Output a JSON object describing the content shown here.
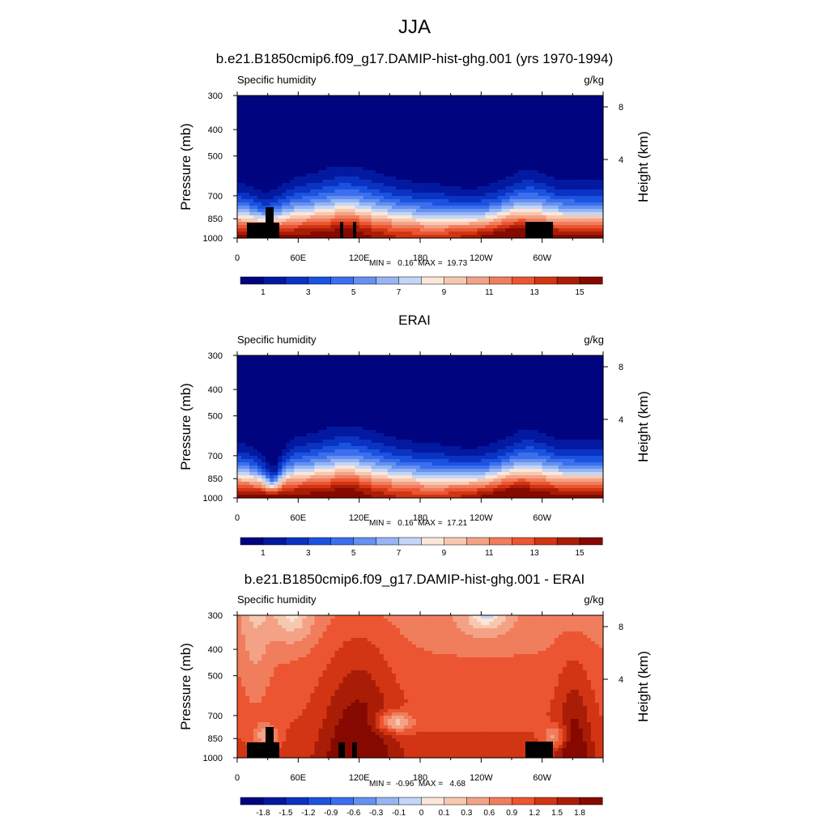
{
  "page": {
    "title": "JJA"
  },
  "panels": [
    {
      "title": "b.e21.B1850cmip6.f09_g17.DAMIP-hist-ghg.001 (yrs 1970-1994)",
      "variable": "Specific humidity",
      "units": "g/kg",
      "stats": "MIN =   0.16  MAX =  19.73"
    },
    {
      "title": "ERAI",
      "variable": "Specific humidity",
      "units": "g/kg",
      "stats": "MIN =   0.16  MAX =  17.21"
    },
    {
      "title": "b.e21.B1850cmip6.f09_g17.DAMIP-hist-ghg.001 - ERAI",
      "variable": "Specific humidity",
      "units": "g/kg",
      "stats": "MIN =  -0.96  MAX =   4.68"
    }
  ],
  "chart_data": [
    {
      "type": "heatmap",
      "title": "b.e21.B1850cmip6.f09_g17.DAMIP-hist-ghg.001 (yrs 1970-1994)",
      "subtitle_left": "Specific humidity",
      "subtitle_right": "g/kg",
      "xlabel": "",
      "ylabel": "Pressure (mb)",
      "y2label": "Height (km)",
      "xticks": [
        "0",
        "60E",
        "120E",
        "180",
        "120W",
        "60W"
      ],
      "yticks": [
        "300",
        "400",
        "500",
        "700",
        "850",
        "1000"
      ],
      "y2ticks": [
        "8",
        "4"
      ],
      "colorbar_labels": [
        "1",
        "3",
        "5",
        "7",
        "9",
        "11",
        "13",
        "15"
      ],
      "colorbar_colors": [
        "#00047f",
        "#0319a0",
        "#0a33c2",
        "#1b52df",
        "#3b6fee",
        "#6591f0",
        "#97b5f3",
        "#c3d6f7",
        "#fbe6d8",
        "#f7c8b0",
        "#f4a286",
        "#f07d5c",
        "#ec5532",
        "#d23513",
        "#a91d06",
        "#860900"
      ],
      "x_range": [
        0,
        360
      ],
      "y_range": [
        1000,
        300
      ],
      "min": 0.16,
      "max": 19.73
    },
    {
      "type": "heatmap",
      "title": "ERAI",
      "subtitle_left": "Specific humidity",
      "subtitle_right": "g/kg",
      "xlabel": "",
      "ylabel": "Pressure (mb)",
      "y2label": "Height (km)",
      "xticks": [
        "0",
        "60E",
        "120E",
        "180",
        "120W",
        "60W"
      ],
      "yticks": [
        "300",
        "400",
        "500",
        "700",
        "850",
        "1000"
      ],
      "y2ticks": [
        "8",
        "4"
      ],
      "colorbar_labels": [
        "1",
        "3",
        "5",
        "7",
        "9",
        "11",
        "13",
        "15"
      ],
      "colorbar_colors": [
        "#00047f",
        "#0319a0",
        "#0a33c2",
        "#1b52df",
        "#3b6fee",
        "#6591f0",
        "#97b5f3",
        "#c3d6f7",
        "#fbe6d8",
        "#f7c8b0",
        "#f4a286",
        "#f07d5c",
        "#ec5532",
        "#d23513",
        "#a91d06",
        "#860900"
      ],
      "x_range": [
        0,
        360
      ],
      "y_range": [
        1000,
        300
      ],
      "min": 0.16,
      "max": 17.21
    },
    {
      "type": "heatmap",
      "title": "b.e21.B1850cmip6.f09_g17.DAMIP-hist-ghg.001 - ERAI",
      "subtitle_left": "Specific humidity",
      "subtitle_right": "g/kg",
      "xlabel": "",
      "ylabel": "Pressure (mb)",
      "y2label": "Height (km)",
      "xticks": [
        "0",
        "60E",
        "120E",
        "180",
        "120W",
        "60W"
      ],
      "yticks": [
        "300",
        "400",
        "500",
        "700",
        "850",
        "1000"
      ],
      "y2ticks": [
        "8",
        "4"
      ],
      "colorbar_labels": [
        "-1.8",
        "-1.5",
        "-1.2",
        "-0.9",
        "-0.6",
        "-0.3",
        "-0.1",
        "0",
        "0.1",
        "0.3",
        "0.6",
        "0.9",
        "1.2",
        "1.5",
        "1.8"
      ],
      "colorbar_colors": [
        "#00047f",
        "#0319a0",
        "#0a33c2",
        "#1b52df",
        "#3b6fee",
        "#6591f0",
        "#97b5f3",
        "#c3d6f7",
        "#fbe6d8",
        "#f7c8b0",
        "#f4a286",
        "#f07d5c",
        "#ec5532",
        "#d23513",
        "#a91d06",
        "#860900"
      ],
      "x_range": [
        0,
        360
      ],
      "y_range": [
        1000,
        300
      ],
      "min": -0.96,
      "max": 4.68
    }
  ]
}
